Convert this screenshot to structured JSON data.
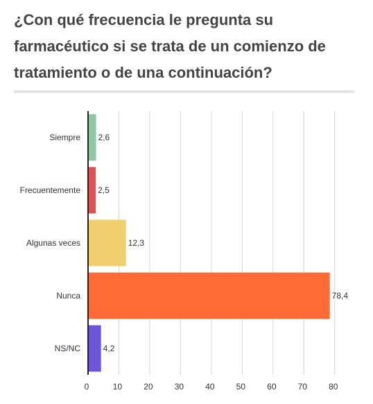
{
  "chart_data": {
    "type": "bar",
    "orientation": "horizontal",
    "title": "¿Con qué frecuencia le pregunta su farmacéutico si se trata de un comienzo de tratamiento o de una continuación?",
    "categories": [
      "Siempre",
      "Frecuentemente",
      "Algunas veces",
      "Nunca",
      "NS/NC"
    ],
    "values": [
      2.6,
      2.5,
      12.3,
      78.4,
      4.2
    ],
    "value_labels": [
      "2,6",
      "2,5",
      "12,3",
      "78,4",
      "4,2"
    ],
    "colors": [
      "#8fc7a2",
      "#e05252",
      "#f1cf6f",
      "#ff6b35",
      "#6e55d9"
    ],
    "xlim": [
      0,
      85
    ],
    "xticks": [
      0,
      10,
      20,
      30,
      40,
      50,
      60,
      70,
      80
    ],
    "grid": true,
    "xlabel": "",
    "ylabel": ""
  }
}
